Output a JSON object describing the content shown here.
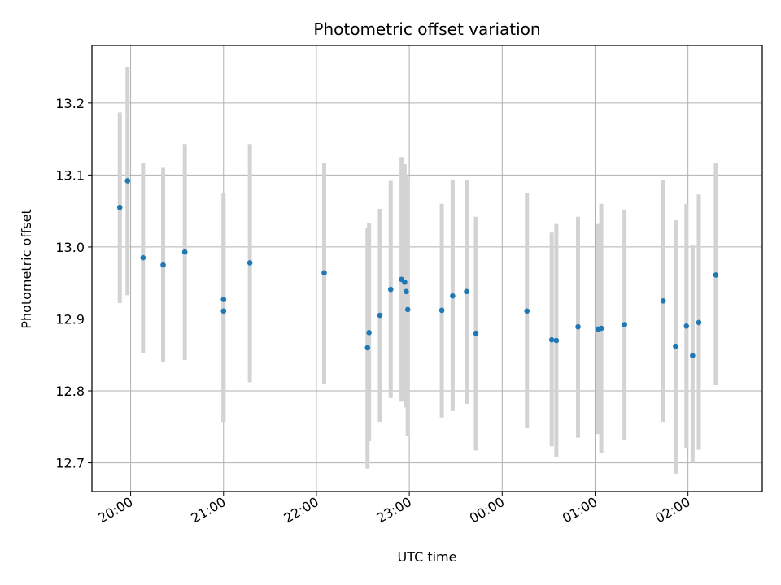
{
  "chart_data": {
    "type": "scatter",
    "title": "Photometric offset variation",
    "xlabel": "UTC time",
    "ylabel": "Photometric offset",
    "grid": true,
    "error_bar_color": "#d3d3d3",
    "point_color": "#1f77b4",
    "x_axis": {
      "type": "time",
      "range": [
        "19:35",
        "02:48"
      ],
      "ticks": [
        "20:00",
        "21:00",
        "22:00",
        "23:00",
        "00:00",
        "01:00",
        "02:00"
      ]
    },
    "y_axis": {
      "range": [
        12.66,
        13.28
      ],
      "ticks": [
        "12.7",
        "12.8",
        "12.9",
        "13.0",
        "13.1",
        "13.2"
      ]
    },
    "points": [
      {
        "x": "19:53",
        "y": 13.055,
        "ylow": 12.922,
        "yhigh": 13.187
      },
      {
        "x": "19:58",
        "y": 13.092,
        "ylow": 12.933,
        "yhigh": 13.25
      },
      {
        "x": "20:08",
        "y": 12.985,
        "ylow": 12.853,
        "yhigh": 13.117
      },
      {
        "x": "20:21",
        "y": 12.975,
        "ylow": 12.84,
        "yhigh": 13.11
      },
      {
        "x": "20:35",
        "y": 12.993,
        "ylow": 12.843,
        "yhigh": 13.143
      },
      {
        "x": "21:00",
        "y": 12.927,
        "ylow": 12.757,
        "yhigh": 13.075
      },
      {
        "x": "21:00",
        "y": 12.911,
        "ylow": 12.757,
        "yhigh": 13.068
      },
      {
        "x": "21:17",
        "y": 12.978,
        "ylow": 12.812,
        "yhigh": 13.143
      },
      {
        "x": "22:05",
        "y": 12.964,
        "ylow": 12.81,
        "yhigh": 13.117
      },
      {
        "x": "22:33",
        "y": 12.86,
        "ylow": 12.692,
        "yhigh": 13.027
      },
      {
        "x": "22:34",
        "y": 12.881,
        "ylow": 12.73,
        "yhigh": 13.033
      },
      {
        "x": "22:41",
        "y": 12.905,
        "ylow": 12.757,
        "yhigh": 13.053
      },
      {
        "x": "22:48",
        "y": 12.941,
        "ylow": 12.79,
        "yhigh": 13.092
      },
      {
        "x": "22:55",
        "y": 12.955,
        "ylow": 12.785,
        "yhigh": 13.125
      },
      {
        "x": "22:57",
        "y": 12.951,
        "ylow": 12.787,
        "yhigh": 13.115
      },
      {
        "x": "22:58",
        "y": 12.938,
        "ylow": 12.777,
        "yhigh": 13.1
      },
      {
        "x": "22:59",
        "y": 12.913,
        "ylow": 12.737,
        "yhigh": 13.092
      },
      {
        "x": "23:21",
        "y": 12.912,
        "ylow": 12.763,
        "yhigh": 13.06
      },
      {
        "x": "23:28",
        "y": 12.932,
        "ylow": 12.772,
        "yhigh": 13.093
      },
      {
        "x": "23:37",
        "y": 12.938,
        "ylow": 12.782,
        "yhigh": 13.093
      },
      {
        "x": "23:43",
        "y": 12.88,
        "ylow": 12.717,
        "yhigh": 13.042
      },
      {
        "x": "00:16",
        "y": 12.911,
        "ylow": 12.748,
        "yhigh": 13.075
      },
      {
        "x": "00:32",
        "y": 12.871,
        "ylow": 12.723,
        "yhigh": 13.02
      },
      {
        "x": "00:35",
        "y": 12.87,
        "ylow": 12.708,
        "yhigh": 13.032
      },
      {
        "x": "00:49",
        "y": 12.889,
        "ylow": 12.735,
        "yhigh": 13.042
      },
      {
        "x": "01:02",
        "y": 12.886,
        "ylow": 12.74,
        "yhigh": 13.032
      },
      {
        "x": "01:04",
        "y": 12.887,
        "ylow": 12.714,
        "yhigh": 13.06
      },
      {
        "x": "01:19",
        "y": 12.892,
        "ylow": 12.732,
        "yhigh": 13.052
      },
      {
        "x": "01:44",
        "y": 12.925,
        "ylow": 12.757,
        "yhigh": 13.093
      },
      {
        "x": "01:52",
        "y": 12.862,
        "ylow": 12.685,
        "yhigh": 13.037
      },
      {
        "x": "01:59",
        "y": 12.89,
        "ylow": 12.72,
        "yhigh": 13.06
      },
      {
        "x": "02:03",
        "y": 12.849,
        "ylow": 12.7,
        "yhigh": 13.002
      },
      {
        "x": "02:07",
        "y": 12.895,
        "ylow": 12.718,
        "yhigh": 13.073
      },
      {
        "x": "02:18",
        "y": 12.961,
        "ylow": 12.808,
        "yhigh": 13.117
      }
    ]
  }
}
